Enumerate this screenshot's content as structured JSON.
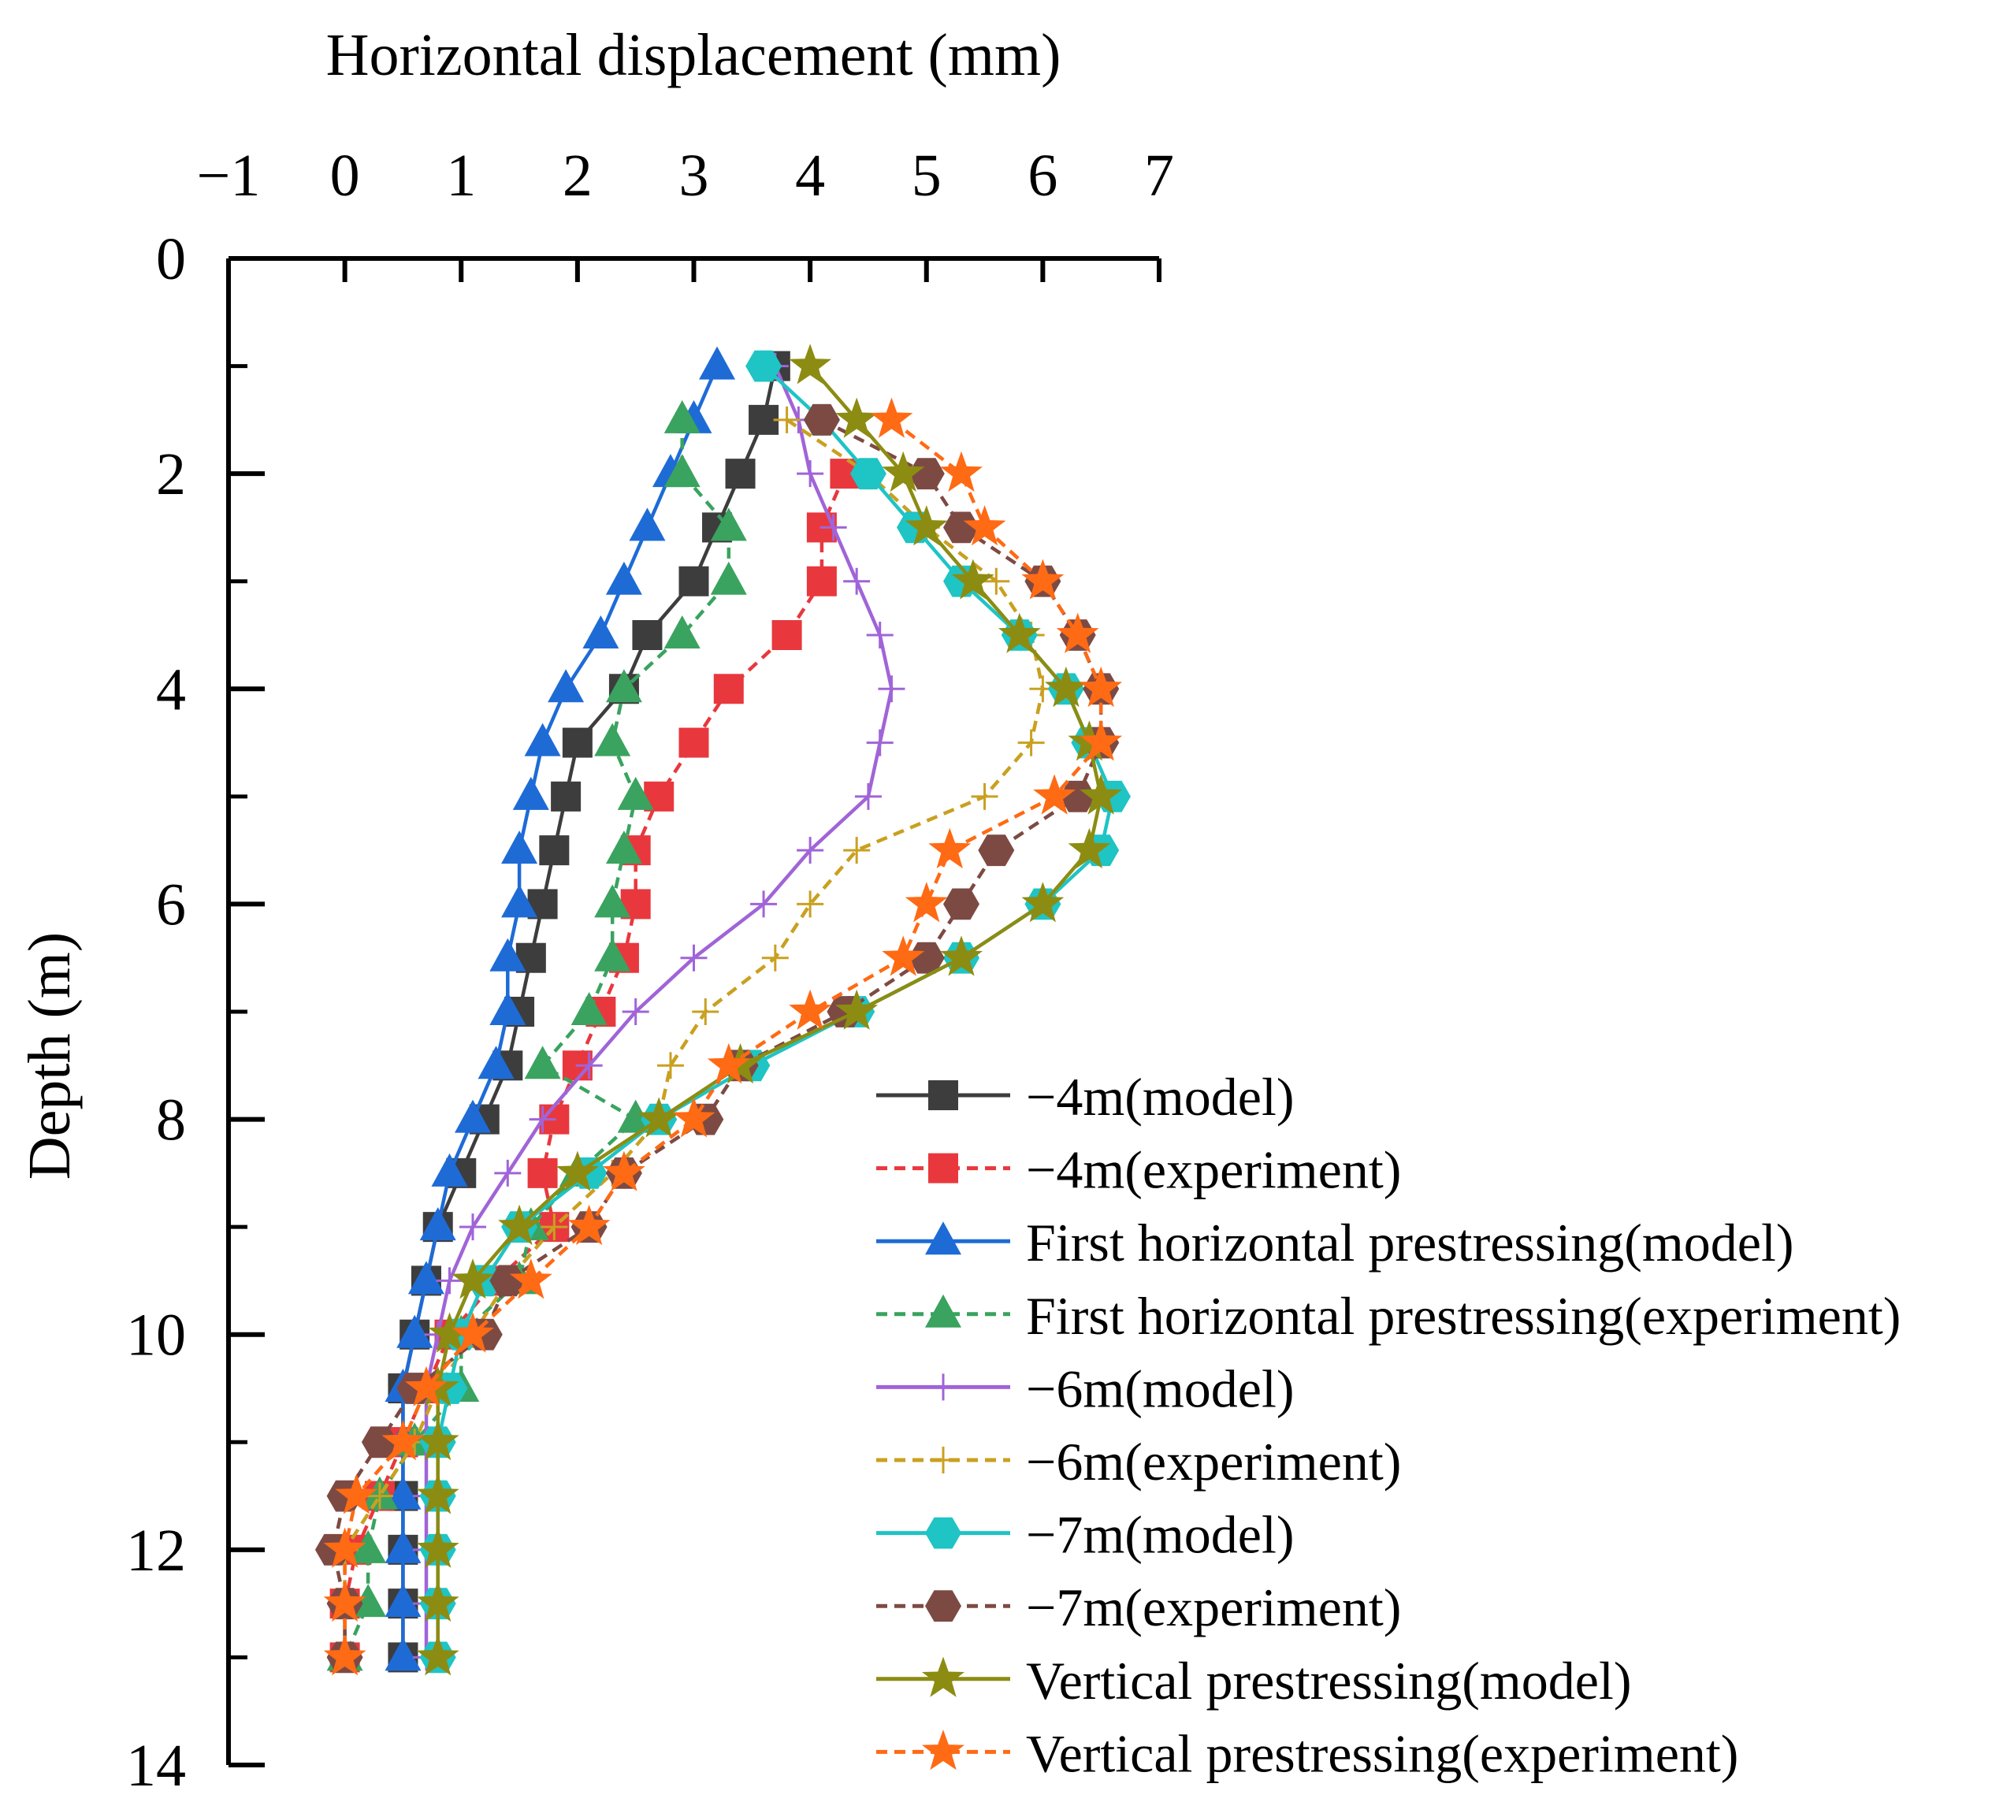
{
  "chart_data": {
    "type": "line",
    "title": "",
    "xlabel": "Horizontal displacement (mm)",
    "ylabel": "Depth (m)",
    "xlim": [
      -1,
      7
    ],
    "ylim": [
      14,
      0
    ],
    "x_ticks": [
      "−1",
      "0",
      "1",
      "2",
      "3",
      "4",
      "5",
      "6",
      "7"
    ],
    "y_ticks": [
      "0",
      "2",
      "4",
      "6",
      "8",
      "10",
      "12",
      "14"
    ],
    "x_axis_position": "top",
    "grid": false,
    "legend_position": "bottom-right",
    "series": [
      {
        "name": "−4m(model)",
        "color": "#3d3d3d",
        "dash": "solid",
        "marker": "square",
        "points": [
          [
            3.7,
            1.0
          ],
          [
            3.6,
            1.5
          ],
          [
            3.4,
            2.0
          ],
          [
            3.2,
            2.5
          ],
          [
            3.0,
            3.0
          ],
          [
            2.6,
            3.5
          ],
          [
            2.4,
            4.0
          ],
          [
            2.0,
            4.5
          ],
          [
            1.9,
            5.0
          ],
          [
            1.8,
            5.5
          ],
          [
            1.7,
            6.0
          ],
          [
            1.6,
            6.5
          ],
          [
            1.5,
            7.0
          ],
          [
            1.4,
            7.5
          ],
          [
            1.2,
            8.0
          ],
          [
            1.0,
            8.5
          ],
          [
            0.8,
            9.0
          ],
          [
            0.7,
            9.5
          ],
          [
            0.6,
            10.0
          ],
          [
            0.5,
            10.5
          ],
          [
            0.5,
            11.0
          ],
          [
            0.5,
            11.5
          ],
          [
            0.5,
            12.0
          ],
          [
            0.5,
            12.5
          ],
          [
            0.5,
            13.0
          ]
        ]
      },
      {
        "name": "−4m(experiment)",
        "color": "#e8383d",
        "dash": "dashed",
        "marker": "square",
        "points": [
          [
            4.3,
            2.0
          ],
          [
            4.1,
            2.5
          ],
          [
            4.1,
            3.0
          ],
          [
            3.8,
            3.5
          ],
          [
            3.3,
            4.0
          ],
          [
            3.0,
            4.5
          ],
          [
            2.7,
            5.0
          ],
          [
            2.5,
            5.5
          ],
          [
            2.5,
            6.0
          ],
          [
            2.4,
            6.5
          ],
          [
            2.2,
            7.0
          ],
          [
            2.0,
            7.5
          ],
          [
            1.8,
            8.0
          ],
          [
            1.7,
            8.5
          ],
          [
            1.8,
            9.0
          ],
          [
            1.3,
            9.5
          ],
          [
            0.9,
            10.0
          ],
          [
            0.7,
            10.5
          ],
          [
            0.5,
            11.0
          ],
          [
            0.3,
            11.5
          ],
          [
            0.1,
            12.0
          ],
          [
            0.0,
            12.5
          ],
          [
            0.0,
            13.0
          ]
        ]
      },
      {
        "name": "First horizontal prestressing(model)",
        "color": "#1e6bd6",
        "dash": "solid",
        "marker": "triangle",
        "points": [
          [
            3.2,
            1.0
          ],
          [
            3.0,
            1.5
          ],
          [
            2.8,
            2.0
          ],
          [
            2.6,
            2.5
          ],
          [
            2.4,
            3.0
          ],
          [
            2.2,
            3.5
          ],
          [
            1.9,
            4.0
          ],
          [
            1.7,
            4.5
          ],
          [
            1.6,
            5.0
          ],
          [
            1.5,
            5.5
          ],
          [
            1.5,
            6.0
          ],
          [
            1.4,
            6.5
          ],
          [
            1.4,
            7.0
          ],
          [
            1.3,
            7.5
          ],
          [
            1.1,
            8.0
          ],
          [
            0.9,
            8.5
          ],
          [
            0.8,
            9.0
          ],
          [
            0.7,
            9.5
          ],
          [
            0.6,
            10.0
          ],
          [
            0.5,
            10.5
          ],
          [
            0.5,
            11.0
          ],
          [
            0.5,
            11.5
          ],
          [
            0.5,
            12.0
          ],
          [
            0.5,
            12.5
          ],
          [
            0.5,
            13.0
          ]
        ]
      },
      {
        "name": "First horizontal prestressing(experiment)",
        "color": "#3aa35f",
        "dash": "dashed",
        "marker": "triangle",
        "points": [
          [
            2.9,
            1.5
          ],
          [
            2.9,
            2.0
          ],
          [
            3.3,
            2.5
          ],
          [
            3.3,
            3.0
          ],
          [
            2.9,
            3.5
          ],
          [
            2.4,
            4.0
          ],
          [
            2.3,
            4.5
          ],
          [
            2.5,
            5.0
          ],
          [
            2.4,
            5.5
          ],
          [
            2.3,
            6.0
          ],
          [
            2.3,
            6.5
          ],
          [
            2.1,
            7.0
          ],
          [
            1.7,
            7.5
          ],
          [
            2.5,
            8.0
          ],
          [
            2.0,
            8.5
          ],
          [
            1.6,
            9.0
          ],
          [
            1.5,
            9.5
          ],
          [
            1.0,
            10.0
          ],
          [
            1.0,
            10.5
          ],
          [
            0.6,
            11.0
          ],
          [
            0.3,
            11.5
          ],
          [
            0.2,
            12.0
          ],
          [
            0.2,
            12.5
          ],
          [
            0.0,
            13.0
          ]
        ]
      },
      {
        "name": "−6m(model)",
        "color": "#a064d8",
        "dash": "solid",
        "marker": "plus",
        "points": [
          [
            3.7,
            1.0
          ],
          [
            3.9,
            1.5
          ],
          [
            4.0,
            2.0
          ],
          [
            4.2,
            2.5
          ],
          [
            4.4,
            3.0
          ],
          [
            4.6,
            3.5
          ],
          [
            4.7,
            4.0
          ],
          [
            4.6,
            4.5
          ],
          [
            4.5,
            5.0
          ],
          [
            4.0,
            5.5
          ],
          [
            3.6,
            6.0
          ],
          [
            3.0,
            6.5
          ],
          [
            2.5,
            7.0
          ],
          [
            2.1,
            7.5
          ],
          [
            1.7,
            8.0
          ],
          [
            1.4,
            8.5
          ],
          [
            1.1,
            9.0
          ],
          [
            0.9,
            9.5
          ],
          [
            0.8,
            10.0
          ],
          [
            0.7,
            10.5
          ],
          [
            0.7,
            11.0
          ],
          [
            0.7,
            11.5
          ],
          [
            0.7,
            12.0
          ],
          [
            0.7,
            12.5
          ],
          [
            0.7,
            13.0
          ]
        ]
      },
      {
        "name": "−6m(experiment)",
        "color": "#c9a020",
        "dash": "dashed",
        "marker": "plus",
        "points": [
          [
            3.8,
            1.5
          ],
          [
            4.5,
            2.0
          ],
          [
            5.0,
            2.5
          ],
          [
            5.6,
            3.0
          ],
          [
            5.9,
            3.5
          ],
          [
            6.0,
            4.0
          ],
          [
            5.9,
            4.5
          ],
          [
            5.5,
            5.0
          ],
          [
            4.4,
            5.5
          ],
          [
            4.0,
            6.0
          ],
          [
            3.7,
            6.5
          ],
          [
            3.1,
            7.0
          ],
          [
            2.8,
            7.5
          ],
          [
            2.7,
            8.0
          ],
          [
            2.3,
            8.5
          ],
          [
            1.8,
            9.0
          ],
          [
            1.4,
            9.5
          ],
          [
            1.1,
            10.0
          ],
          [
            0.8,
            10.5
          ],
          [
            0.6,
            11.0
          ],
          [
            0.3,
            11.5
          ],
          [
            0.0,
            12.0
          ],
          [
            0.0,
            12.5
          ],
          [
            0.0,
            13.0
          ]
        ]
      },
      {
        "name": "−7m(model)",
        "color": "#1fc4c4",
        "dash": "solid",
        "marker": "hexagon",
        "points": [
          [
            3.6,
            1.0
          ],
          [
            4.1,
            1.5
          ],
          [
            4.5,
            2.0
          ],
          [
            4.9,
            2.5
          ],
          [
            5.3,
            3.0
          ],
          [
            5.8,
            3.5
          ],
          [
            6.2,
            4.0
          ],
          [
            6.4,
            4.5
          ],
          [
            6.6,
            5.0
          ],
          [
            6.5,
            5.5
          ],
          [
            6.0,
            6.0
          ],
          [
            5.3,
            6.5
          ],
          [
            4.4,
            7.0
          ],
          [
            3.5,
            7.5
          ],
          [
            2.7,
            8.0
          ],
          [
            2.1,
            8.5
          ],
          [
            1.5,
            9.0
          ],
          [
            1.2,
            9.5
          ],
          [
            1.0,
            10.0
          ],
          [
            0.9,
            10.5
          ],
          [
            0.8,
            11.0
          ],
          [
            0.8,
            11.5
          ],
          [
            0.8,
            12.0
          ],
          [
            0.8,
            12.5
          ],
          [
            0.8,
            13.0
          ]
        ]
      },
      {
        "name": "−7m(experiment)",
        "color": "#7d4a43",
        "dash": "dashed",
        "marker": "hexagon",
        "points": [
          [
            4.1,
            1.5
          ],
          [
            5.0,
            2.0
          ],
          [
            5.3,
            2.5
          ],
          [
            6.0,
            3.0
          ],
          [
            6.3,
            3.5
          ],
          [
            6.5,
            4.0
          ],
          [
            6.5,
            4.5
          ],
          [
            6.3,
            5.0
          ],
          [
            5.6,
            5.5
          ],
          [
            5.3,
            6.0
          ],
          [
            5.0,
            6.5
          ],
          [
            4.3,
            7.0
          ],
          [
            3.4,
            7.5
          ],
          [
            3.1,
            8.0
          ],
          [
            2.4,
            8.5
          ],
          [
            2.1,
            9.0
          ],
          [
            1.4,
            9.5
          ],
          [
            1.2,
            10.0
          ],
          [
            0.6,
            10.5
          ],
          [
            0.3,
            11.0
          ],
          [
            0.0,
            11.5
          ],
          [
            -0.1,
            12.0
          ],
          [
            0.0,
            12.5
          ],
          [
            0.0,
            13.0
          ]
        ]
      },
      {
        "name": "Vertical prestressing(model)",
        "color": "#8c8c12",
        "dash": "solid",
        "marker": "star",
        "points": [
          [
            4.0,
            1.0
          ],
          [
            4.4,
            1.5
          ],
          [
            4.8,
            2.0
          ],
          [
            5.0,
            2.5
          ],
          [
            5.4,
            3.0
          ],
          [
            5.8,
            3.5
          ],
          [
            6.2,
            4.0
          ],
          [
            6.4,
            4.5
          ],
          [
            6.5,
            5.0
          ],
          [
            6.4,
            5.5
          ],
          [
            6.0,
            6.0
          ],
          [
            5.3,
            6.5
          ],
          [
            4.4,
            7.0
          ],
          [
            3.4,
            7.5
          ],
          [
            2.7,
            8.0
          ],
          [
            2.0,
            8.5
          ],
          [
            1.5,
            9.0
          ],
          [
            1.1,
            9.5
          ],
          [
            0.9,
            10.0
          ],
          [
            0.8,
            10.5
          ],
          [
            0.8,
            11.0
          ],
          [
            0.8,
            11.5
          ],
          [
            0.8,
            12.0
          ],
          [
            0.8,
            12.5
          ],
          [
            0.8,
            13.0
          ]
        ]
      },
      {
        "name": "Vertical prestressing(experiment)",
        "color": "#ff6a14",
        "dash": "dashed",
        "marker": "star",
        "points": [
          [
            4.7,
            1.5
          ],
          [
            5.3,
            2.0
          ],
          [
            5.5,
            2.5
          ],
          [
            6.0,
            3.0
          ],
          [
            6.3,
            3.5
          ],
          [
            6.5,
            4.0
          ],
          [
            6.5,
            4.5
          ],
          [
            6.1,
            5.0
          ],
          [
            5.2,
            5.5
          ],
          [
            5.0,
            6.0
          ],
          [
            4.8,
            6.5
          ],
          [
            4.0,
            7.0
          ],
          [
            3.3,
            7.5
          ],
          [
            3.0,
            8.0
          ],
          [
            2.4,
            8.5
          ],
          [
            2.1,
            9.0
          ],
          [
            1.6,
            9.5
          ],
          [
            1.1,
            10.0
          ],
          [
            0.7,
            10.5
          ],
          [
            0.5,
            11.0
          ],
          [
            0.1,
            11.5
          ],
          [
            0.0,
            12.0
          ],
          [
            0.0,
            12.5
          ],
          [
            0.0,
            13.0
          ]
        ]
      }
    ]
  }
}
